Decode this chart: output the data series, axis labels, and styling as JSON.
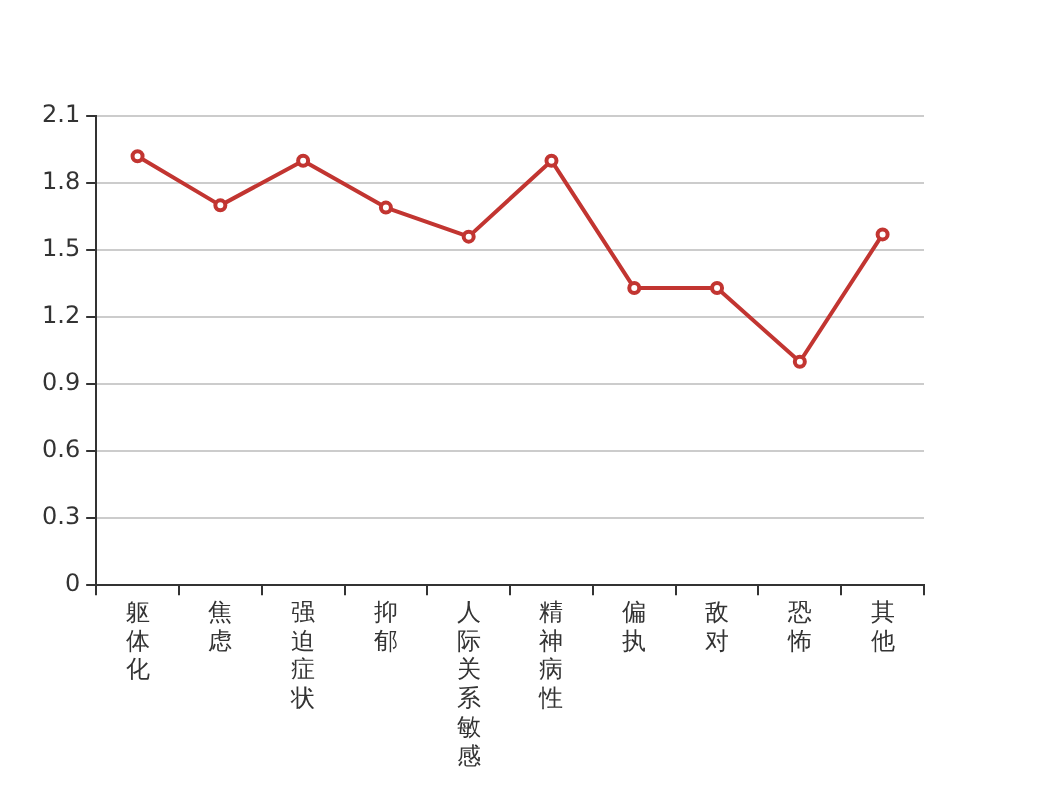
{
  "chart_data": {
    "type": "line",
    "categories": [
      "躯体化",
      "焦虑",
      "强迫症状",
      "抑郁",
      "人际关系敏感",
      "精神病性",
      "偏执",
      "敌对",
      "恐怖",
      "其他"
    ],
    "series": [
      {
        "color": "#c23531",
        "values": [
          1.92,
          1.7,
          1.9,
          1.69,
          1.56,
          1.9,
          1.33,
          1.33,
          1.0,
          1.57
        ]
      }
    ],
    "ylim": [
      0,
      2.1
    ],
    "yticks": [
      0,
      0.3,
      0.6,
      0.9,
      1.2,
      1.5,
      1.8,
      2.1
    ],
    "grid": "y",
    "marker": "circle",
    "line_style": "solid"
  }
}
